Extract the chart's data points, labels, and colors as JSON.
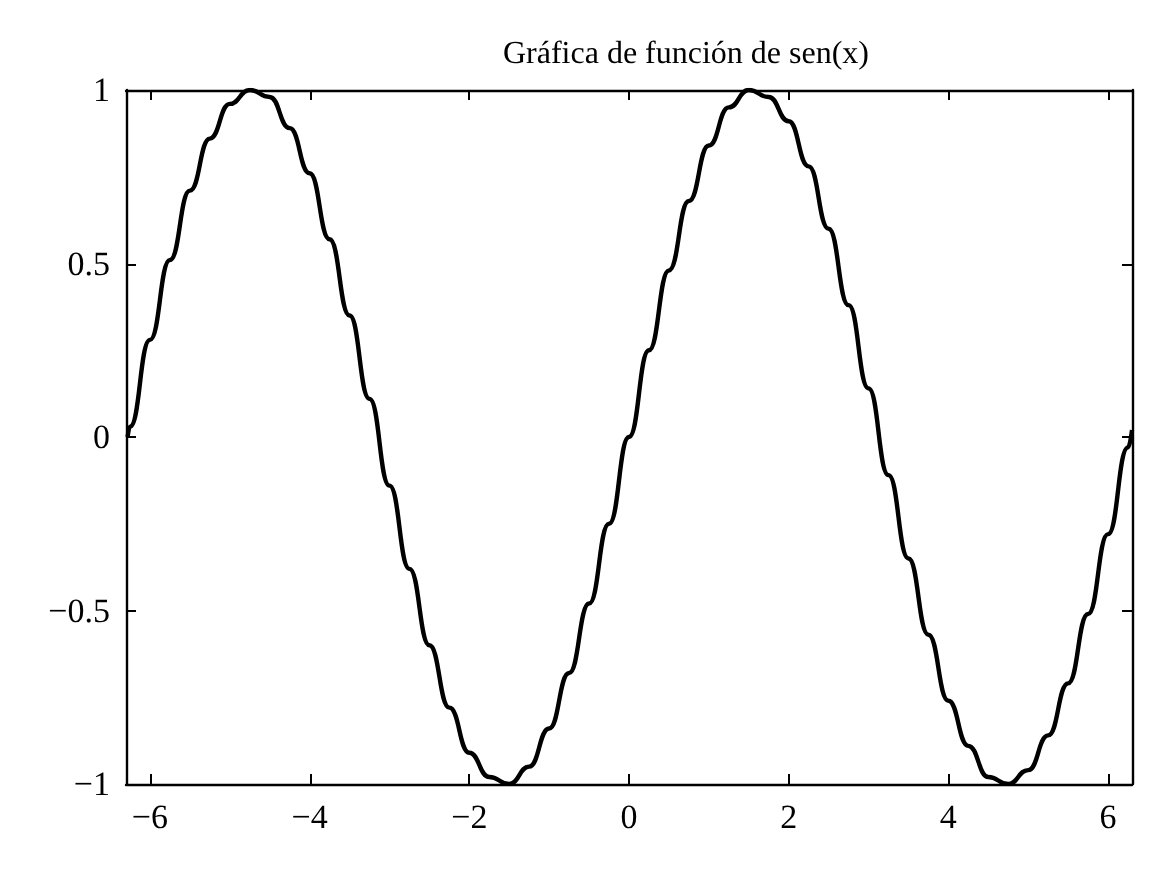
{
  "chart_data": {
    "type": "line",
    "title": "Gráfica de función de sen(x)",
    "x": [
      -6.28,
      -6.25,
      -6.0,
      -5.75,
      -5.5,
      -5.25,
      -5.0,
      -4.75,
      -4.5,
      -4.25,
      -4.0,
      -3.75,
      -3.5,
      -3.25,
      -3.0,
      -2.75,
      -2.5,
      -2.25,
      -2.0,
      -1.75,
      -1.5,
      -1.25,
      -1.0,
      -0.75,
      -0.5,
      -0.25,
      0,
      0.25,
      0.5,
      0.75,
      1.0,
      1.25,
      1.5,
      1.75,
      2.0,
      2.25,
      2.5,
      2.75,
      3.0,
      3.25,
      3.5,
      3.75,
      4.0,
      4.25,
      4.5,
      4.75,
      5.0,
      5.25,
      5.5,
      5.75,
      6.0,
      6.25,
      6.3
    ],
    "series": [
      {
        "color": "#000000",
        "values": [
          0,
          0.03,
          0.28,
          0.51,
          0.71,
          0.86,
          0.96,
          1.0,
          0.98,
          0.89,
          0.76,
          0.57,
          0.35,
          0.11,
          -0.14,
          -0.38,
          -0.6,
          -0.78,
          -0.91,
          -0.98,
          -1.0,
          -0.95,
          -0.84,
          -0.68,
          -0.48,
          -0.25,
          0,
          0.25,
          0.48,
          0.68,
          0.84,
          0.95,
          1.0,
          0.98,
          0.91,
          0.78,
          0.6,
          0.38,
          0.14,
          -0.11,
          -0.35,
          -0.57,
          -0.76,
          -0.89,
          -0.98,
          -1.0,
          -0.96,
          -0.86,
          -0.71,
          -0.51,
          -0.28,
          -0.03,
          0.02
        ]
      }
    ],
    "xlim": [
      -6.3,
      6.3
    ],
    "xticks": [
      {
        "value": -6,
        "label": "−6"
      },
      {
        "value": -4,
        "label": "−4"
      },
      {
        "value": -2,
        "label": "−2"
      },
      0,
      2,
      4,
      6
    ],
    "ylim": [
      -1,
      1
    ],
    "yticks": [
      {
        "value": -1,
        "label": "−1"
      },
      {
        "value": -0.5,
        "label": "−0.5"
      },
      0,
      0.5,
      1
    ],
    "grid": false,
    "marker": "none",
    "line_style": "solid"
  }
}
